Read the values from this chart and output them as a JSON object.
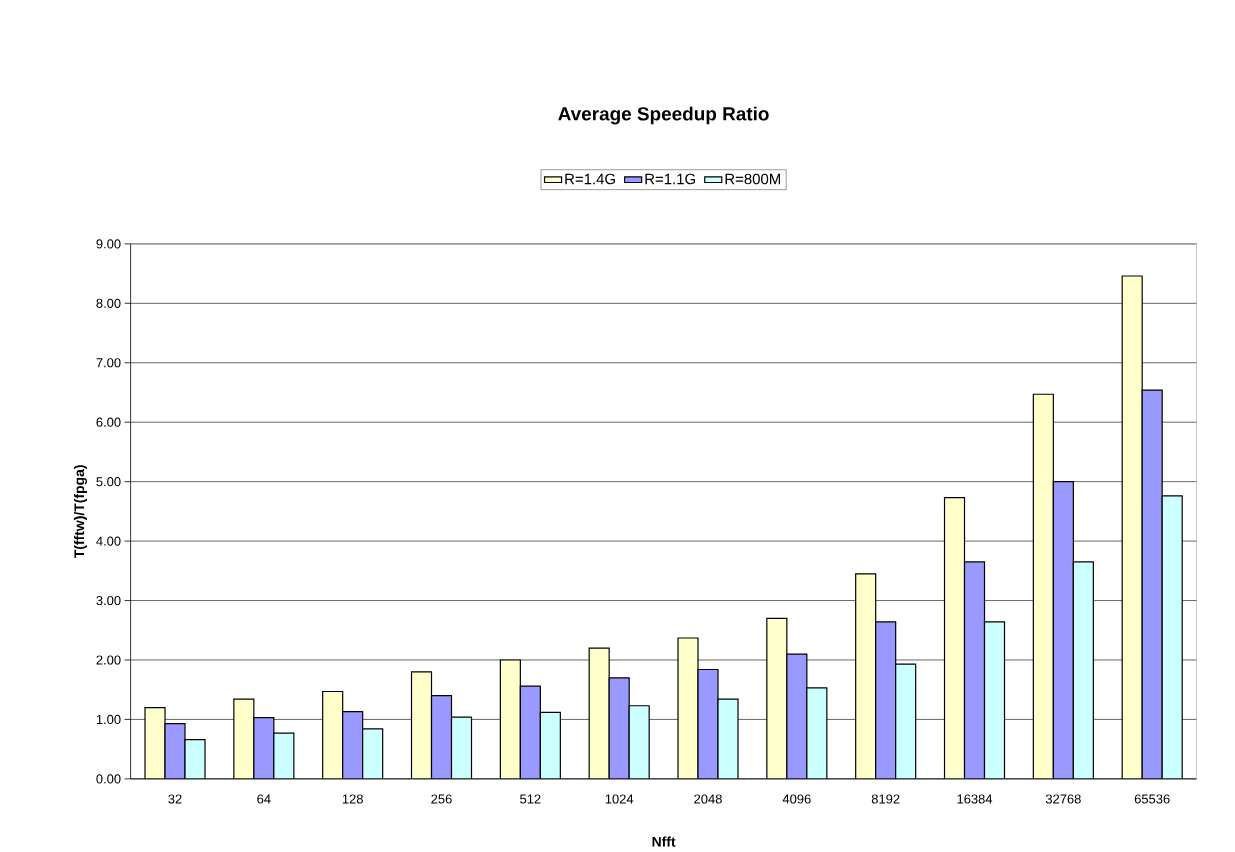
{
  "chart_data": {
    "type": "bar",
    "title": "Average Speedup Ratio",
    "xlabel": "Nfft",
    "ylabel": "T(fftw)/T(fpga)",
    "categories": [
      "32",
      "64",
      "128",
      "256",
      "512",
      "1024",
      "2048",
      "4096",
      "8192",
      "16384",
      "32768",
      "65536"
    ],
    "series": [
      {
        "name": "R=1.4G",
        "color": "#ffffcc",
        "values": [
          1.2,
          1.34,
          1.47,
          1.8,
          2.0,
          2.2,
          2.37,
          2.7,
          3.45,
          4.73,
          6.47,
          8.46
        ]
      },
      {
        "name": "R=1.1G",
        "color": "#9999ff",
        "values": [
          0.93,
          1.03,
          1.13,
          1.4,
          1.56,
          1.7,
          1.84,
          2.1,
          2.64,
          3.65,
          5.0,
          6.54
        ]
      },
      {
        "name": "R=800M",
        "color": "#ccffff",
        "values": [
          0.66,
          0.77,
          0.84,
          1.04,
          1.12,
          1.23,
          1.34,
          1.53,
          1.93,
          2.64,
          3.65,
          4.76
        ]
      }
    ],
    "ylim": [
      0,
      9
    ],
    "yticks": [
      {
        "value": 0,
        "label": "0.00"
      },
      {
        "value": 1,
        "label": "1.00"
      },
      {
        "value": 2,
        "label": "2.00"
      },
      {
        "value": 3,
        "label": "3.00"
      },
      {
        "value": 4,
        "label": "4.00"
      },
      {
        "value": 5,
        "label": "5.00"
      },
      {
        "value": 6,
        "label": "6.00"
      },
      {
        "value": 7,
        "label": "7.00"
      },
      {
        "value": 8,
        "label": "8.00"
      },
      {
        "value": 9,
        "label": "9.00"
      }
    ],
    "grid": "y",
    "legend": "top"
  }
}
